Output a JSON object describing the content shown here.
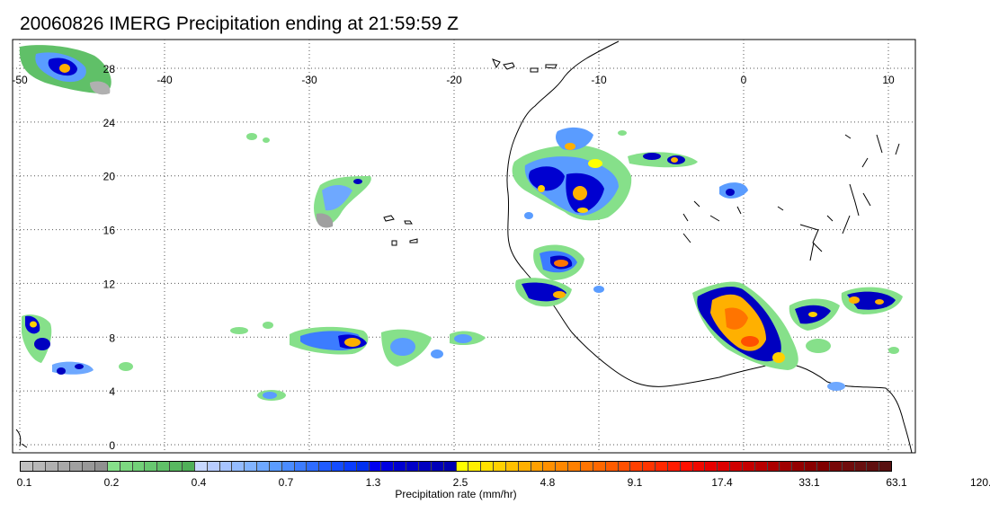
{
  "title": "20060826 IMERG Precipitation ending at 21:59:59 Z",
  "map": {
    "lon_range": [
      -50,
      10
    ],
    "lat_range": [
      -0.5,
      30
    ],
    "lon_ticks": [
      -50,
      -40,
      -30,
      -20,
      -10,
      0,
      10
    ],
    "lat_ticks": [
      0,
      4,
      8,
      12,
      16,
      20,
      24,
      28
    ],
    "grid": "dotted"
  },
  "colorbar": {
    "title": "Precipitation rate (mm/hr)",
    "labels": [
      "0.1",
      "0.2",
      "0.4",
      "0.7",
      "1.3",
      "2.5",
      "4.8",
      "9.1",
      "17.4",
      "33.1",
      "63.1",
      "120.2"
    ],
    "colors": [
      "#c0c0c0",
      "#b8b8b8",
      "#b0b0b0",
      "#a8a8a8",
      "#a0a0a0",
      "#989898",
      "#909090",
      "#86e08a",
      "#7cd880",
      "#72d078",
      "#68c870",
      "#60c068",
      "#58b860",
      "#50b058",
      "#c8d8ff",
      "#b8ccff",
      "#a6c4ff",
      "#94bcff",
      "#82b4ff",
      "#6ea8ff",
      "#5a9cff",
      "#4a8cff",
      "#3c7cff",
      "#2e6cff",
      "#205cff",
      "#144cff",
      "#0a3cff",
      "#0030f0",
      "#0000f0",
      "#0000e0",
      "#0000d0",
      "#0000c8",
      "#0000c0",
      "#0000b8",
      "#0000b0",
      "#ffff00",
      "#ffee00",
      "#ffe000",
      "#ffd000",
      "#ffc000",
      "#ffb000",
      "#ffa000",
      "#ff9000",
      "#ff8800",
      "#ff8000",
      "#ff7400",
      "#ff6800",
      "#ff5c00",
      "#ff5000",
      "#ff4000",
      "#ff3400",
      "#ff2800",
      "#ff1c00",
      "#ff1000",
      "#f00800",
      "#e60000",
      "#dc0000",
      "#d00000",
      "#c40000",
      "#b80000",
      "#ac0000",
      "#a00000",
      "#940000",
      "#880000",
      "#800000",
      "#780808",
      "#700c0c",
      "#681010",
      "#601010",
      "#581010"
    ]
  },
  "icons": {
    "coastline": "coastline-map",
    "precipitation": "precipitation-overlay"
  }
}
